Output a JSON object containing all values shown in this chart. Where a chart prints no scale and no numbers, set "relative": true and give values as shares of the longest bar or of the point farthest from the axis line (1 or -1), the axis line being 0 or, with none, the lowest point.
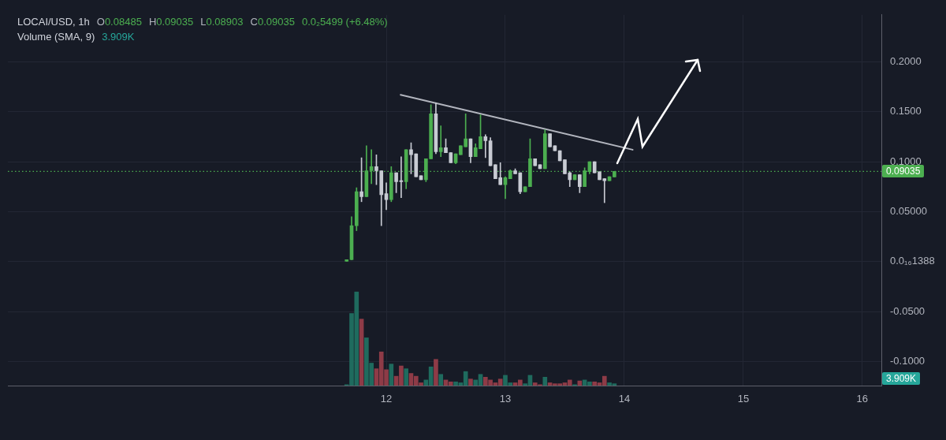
{
  "chart_data": [
    {
      "type": "candlestick",
      "title": "LOCAI/USD, 1h",
      "annotations": [
        "O0.08485",
        "H0.09035",
        "L0.08903",
        "C0.09035",
        "0.0₂5499 (+6.48%)"
      ],
      "x": [
        11.6667,
        11.7083,
        11.75,
        11.7917,
        11.8333,
        11.875,
        11.9167,
        11.9583,
        12,
        12.0417,
        12.0833,
        12.125,
        12.1667,
        12.2083,
        12.25,
        12.2917,
        12.3333,
        12.375,
        12.4167,
        12.4583,
        12.5,
        12.5417,
        12.5833,
        12.625,
        12.6667,
        12.7083,
        12.75,
        12.7917,
        12.8333,
        12.875,
        12.9167,
        12.9583,
        13,
        13.0417,
        13.0833,
        13.125,
        13.1667,
        13.2083,
        13.25,
        13.2917,
        13.3333,
        13.375,
        13.4167,
        13.4583,
        13.5,
        13.5417,
        13.5833,
        13.625,
        13.6667,
        13.7083,
        13.75,
        13.7917,
        13.8333,
        13.875,
        13.9167
      ],
      "ohlc": [
        [
          0,
          0.002,
          0,
          0.002
        ],
        [
          0.002,
          0.045,
          0.002,
          0.036
        ],
        [
          0.036,
          0.074,
          0.031,
          0.07
        ],
        [
          0.07,
          0.104,
          0.06,
          0.065
        ],
        [
          0.065,
          0.116,
          0.065,
          0.091
        ],
        [
          0.091,
          0.112,
          0.078,
          0.095
        ],
        [
          0.095,
          0.107,
          0.077,
          0.091
        ],
        [
          0.091,
          0.091,
          0.036,
          0.067
        ],
        [
          0.068,
          0.079,
          0.052,
          0.062
        ],
        [
          0.062,
          0.095,
          0.06,
          0.089
        ],
        [
          0.089,
          0.089,
          0.069,
          0.08
        ],
        [
          0.081,
          0.105,
          0.064,
          0.08
        ],
        [
          0.08,
          0.112,
          0.073,
          0.112
        ],
        [
          0.112,
          0.119,
          0.088,
          0.107
        ],
        [
          0.108,
          0.108,
          0.085,
          0.085
        ],
        [
          0.086,
          0.086,
          0.082,
          0.082
        ],
        [
          0.082,
          0.103,
          0.08,
          0.103
        ],
        [
          0.103,
          0.157,
          0.103,
          0.148
        ],
        [
          0.148,
          0.159,
          0.108,
          0.11
        ],
        [
          0.11,
          0.136,
          0.105,
          0.114
        ],
        [
          0.114,
          0.123,
          0.109,
          0.109
        ],
        [
          0.109,
          0.109,
          0.099,
          0.099
        ],
        [
          0.099,
          0.108,
          0.098,
          0.108
        ],
        [
          0.107,
          0.116,
          0.107,
          0.116
        ],
        [
          0.115,
          0.148,
          0.115,
          0.123
        ],
        [
          0.123,
          0.123,
          0.099,
          0.105
        ],
        [
          0.105,
          0.118,
          0.105,
          0.114
        ],
        [
          0.113,
          0.147,
          0.113,
          0.125
        ],
        [
          0.125,
          0.127,
          0.104,
          0.121
        ],
        [
          0.121,
          0.124,
          0.096,
          0.096
        ],
        [
          0.097,
          0.097,
          0.083,
          0.083
        ],
        [
          0.084,
          0.099,
          0.077,
          0.077
        ],
        [
          0.077,
          0.085,
          0.063,
          0.084
        ],
        [
          0.083,
          0.092,
          0.083,
          0.091
        ],
        [
          0.091,
          0.093,
          0.088,
          0.088
        ],
        [
          0.089,
          0.089,
          0.068,
          0.07
        ],
        [
          0.07,
          0.075,
          0.07,
          0.075
        ],
        [
          0.075,
          0.123,
          0.075,
          0.103
        ],
        [
          0.103,
          0.103,
          0.096,
          0.096
        ],
        [
          0.097,
          0.097,
          0.093,
          0.093
        ],
        [
          0.093,
          0.132,
          0.093,
          0.128
        ],
        [
          0.128,
          0.128,
          0.115,
          0.115
        ],
        [
          0.116,
          0.116,
          0.111,
          0.111
        ],
        [
          0.111,
          0.111,
          0.101,
          0.101
        ],
        [
          0.102,
          0.102,
          0.088,
          0.088
        ],
        [
          0.089,
          0.09,
          0.075,
          0.082
        ],
        [
          0.082,
          0.087,
          0.082,
          0.087
        ],
        [
          0.087,
          0.087,
          0.069,
          0.075
        ],
        [
          0.075,
          0.094,
          0.075,
          0.091
        ],
        [
          0.09,
          0.1,
          0.088,
          0.1
        ],
        [
          0.1,
          0.1,
          0.089,
          0.089
        ],
        [
          0.09,
          0.09,
          0.082,
          0.082
        ],
        [
          0.083,
          0.083,
          0.059,
          0.081
        ],
        [
          0.081,
          0.085,
          0.081,
          0.085
        ],
        [
          0.08485,
          0.09035,
          0.08485,
          0.09035
        ]
      ],
      "colors": [
        "#4caf50",
        "#4caf50",
        "#4caf50",
        "#c8cbd3",
        "#4caf50",
        "#4caf50",
        "#c8cbd3",
        "#c8cbd3",
        "#c8cbd3",
        "#4caf50",
        "#c8cbd3",
        "#c8cbd3",
        "#4caf50",
        "#c8cbd3",
        "#c8cbd3",
        "#c8cbd3",
        "#4caf50",
        "#4caf50",
        "#c8cbd3",
        "#4caf50",
        "#c8cbd3",
        "#c8cbd3",
        "#4caf50",
        "#4caf50",
        "#4caf50",
        "#c8cbd3",
        "#4caf50",
        "#4caf50",
        "#c8cbd3",
        "#c8cbd3",
        "#c8cbd3",
        "#c8cbd3",
        "#4caf50",
        "#4caf50",
        "#c8cbd3",
        "#c8cbd3",
        "#4caf50",
        "#4caf50",
        "#c8cbd3",
        "#c8cbd3",
        "#4caf50",
        "#c8cbd3",
        "#c8cbd3",
        "#c8cbd3",
        "#c8cbd3",
        "#c8cbd3",
        "#4caf50",
        "#c8cbd3",
        "#4caf50",
        "#4caf50",
        "#c8cbd3",
        "#c8cbd3",
        "#c8cbd3",
        "#4caf50",
        "#4caf50"
      ],
      "series": [
        {
          "type": "line",
          "x": [
            12.12,
            14.07
          ],
          "values": [
            0.167,
            0.112
          ],
          "color": "#b2b5be"
        }
      ],
      "ref_lines": [
        {
          "axis": "y",
          "value": 0.09035,
          "label": "0.09035",
          "color": "#4caf50",
          "line_style": "dotted"
        }
      ],
      "xlim": [
        8.82,
        16.16
      ],
      "xticks": [
        12,
        13,
        14,
        15,
        16
      ],
      "ylim": [
        -0.124,
        0.247
      ],
      "yticks": [
        {
          "value": 0.2,
          "label": "0.2000"
        },
        {
          "value": 0.15,
          "label": "0.1500"
        },
        {
          "value": 0.1,
          "label": "0.1000"
        },
        {
          "value": 0.05,
          "label": "0.05000"
        },
        {
          "value": 0,
          "label": "0.0₁₆1388"
        },
        {
          "value": -0.05,
          "label": "-0.0500"
        },
        {
          "value": -0.1,
          "label": "-0.1000"
        }
      ],
      "grid": true
    },
    {
      "type": "bar",
      "relative": true,
      "title": "Volume (SMA, 9)",
      "annotations": [
        "3.909K",
        "3.909K"
      ],
      "x": [
        11.6667,
        11.7083,
        11.75,
        11.7917,
        11.8333,
        11.875,
        11.9167,
        11.9583,
        12,
        12.0417,
        12.0833,
        12.125,
        12.1667,
        12.2083,
        12.25,
        12.2917,
        12.3333,
        12.375,
        12.4167,
        12.4583,
        12.5,
        12.5417,
        12.5833,
        12.625,
        12.6667,
        12.7083,
        12.75,
        12.7917,
        12.8333,
        12.875,
        12.9167,
        12.9583,
        13,
        13.0417,
        13.0833,
        13.125,
        13.1667,
        13.2083,
        13.25,
        13.2917,
        13.3333,
        13.375,
        13.4167,
        13.4583,
        13.5,
        13.5417,
        13.5833,
        13.625,
        13.6667,
        13.7083,
        13.75,
        13.7917,
        13.8333,
        13.875,
        13.9167
      ],
      "values": [
        0.01,
        0.77,
        1,
        0.71,
        0.51,
        0.24,
        0.18,
        0.36,
        0.17,
        0.23,
        0.1,
        0.21,
        0.18,
        0.13,
        0.1,
        0.03,
        0.06,
        0.2,
        0.28,
        0.12,
        0.06,
        0.04,
        0.04,
        0.03,
        0.15,
        0.07,
        0.06,
        0.12,
        0.09,
        0.06,
        0.03,
        0.07,
        0.11,
        0.03,
        0.03,
        0.06,
        0.02,
        0.11,
        0.03,
        0.01,
        0.09,
        0.03,
        0.02,
        0.02,
        0.03,
        0.06,
        0.01,
        0.05,
        0.06,
        0.04,
        0.04,
        0.03,
        0.1,
        0.03,
        0.02
      ],
      "colors": [
        "#1f6b5e",
        "#1f6b5e",
        "#1f6b5e",
        "#8e3b47",
        "#1f6b5e",
        "#1f6b5e",
        "#8e3b47",
        "#8e3b47",
        "#8e3b47",
        "#1f6b5e",
        "#8e3b47",
        "#8e3b47",
        "#1f6b5e",
        "#8e3b47",
        "#8e3b47",
        "#8e3b47",
        "#1f6b5e",
        "#1f6b5e",
        "#8e3b47",
        "#1f6b5e",
        "#8e3b47",
        "#8e3b47",
        "#1f6b5e",
        "#1f6b5e",
        "#1f6b5e",
        "#8e3b47",
        "#1f6b5e",
        "#1f6b5e",
        "#8e3b47",
        "#8e3b47",
        "#8e3b47",
        "#8e3b47",
        "#1f6b5e",
        "#1f6b5e",
        "#8e3b47",
        "#8e3b47",
        "#1f6b5e",
        "#1f6b5e",
        "#8e3b47",
        "#8e3b47",
        "#1f6b5e",
        "#8e3b47",
        "#8e3b47",
        "#8e3b47",
        "#8e3b47",
        "#8e3b47",
        "#1f6b5e",
        "#8e3b47",
        "#1f6b5e",
        "#1f6b5e",
        "#8e3b47",
        "#8e3b47",
        "#8e3b47",
        "#1f6b5e",
        "#1f6b5e"
      ],
      "xlim": [
        8.82,
        16.16
      ],
      "xticks": [
        12,
        13,
        14,
        15,
        16
      ],
      "tick_labels": false
    }
  ]
}
